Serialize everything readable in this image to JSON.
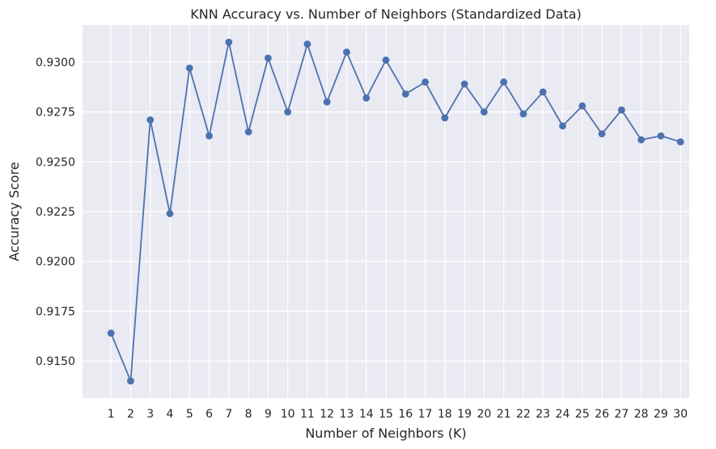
{
  "chart_data": {
    "type": "line",
    "title": "KNN Accuracy vs. Number of Neighbors (Standardized Data)",
    "xlabel": "Number of Neighbors (K)",
    "ylabel": "Accuracy Score",
    "x": [
      1,
      2,
      3,
      4,
      5,
      6,
      7,
      8,
      9,
      10,
      11,
      12,
      13,
      14,
      15,
      16,
      17,
      18,
      19,
      20,
      21,
      22,
      23,
      24,
      25,
      26,
      27,
      28,
      29,
      30
    ],
    "series": [
      {
        "values": [
          0.9164,
          0.914,
          0.9271,
          0.9224,
          0.9297,
          0.9263,
          0.931,
          0.9265,
          0.9302,
          0.9275,
          0.9309,
          0.928,
          0.9305,
          0.9282,
          0.9301,
          0.9284,
          0.929,
          0.9272,
          0.9289,
          0.9275,
          0.929,
          0.9274,
          0.9285,
          0.9268,
          0.9278,
          0.9264,
          0.9276,
          0.9261,
          0.9263,
          0.926
        ],
        "color": "#4c72b0",
        "marker": "circle"
      }
    ],
    "xticks": [
      "1",
      "2",
      "3",
      "4",
      "5",
      "6",
      "7",
      "8",
      "9",
      "10",
      "11",
      "12",
      "13",
      "14",
      "15",
      "16",
      "17",
      "18",
      "19",
      "20",
      "21",
      "22",
      "23",
      "24",
      "25",
      "26",
      "27",
      "28",
      "29",
      "30"
    ],
    "yticks": [
      "0.9150",
      "0.9175",
      "0.9200",
      "0.9225",
      "0.9250",
      "0.9275",
      "0.9300"
    ],
    "ylim": [
      0.91314,
      0.93186
    ],
    "xlim": [
      -0.45,
      30.45
    ],
    "grid": true,
    "style": {
      "background": "#eaeaf2",
      "gridColor": "#ffffff"
    }
  }
}
